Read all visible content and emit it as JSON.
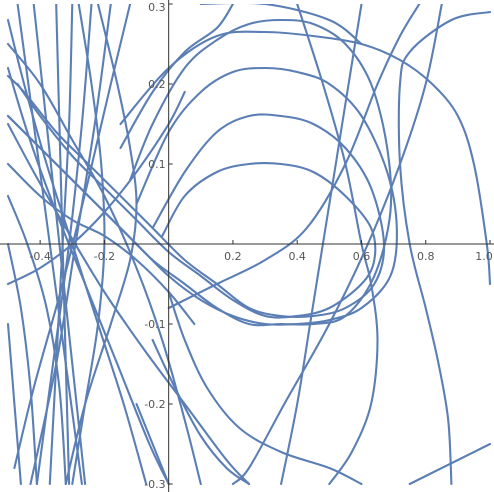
{
  "chart_data": {
    "type": "line",
    "title": "",
    "xlabel": "",
    "ylabel": "",
    "xlim": [
      -0.5,
      1.0
    ],
    "ylim": [
      -0.3,
      0.3
    ],
    "axes_origin": [
      0,
      0
    ],
    "grid": false,
    "legend": "none",
    "curve_color": "#5b7fb5",
    "x_ticks": [
      {
        "value": -0.4,
        "label": "-0.4"
      },
      {
        "value": -0.2,
        "label": "-0.2"
      },
      {
        "value": 0.2,
        "label": "0.2"
      },
      {
        "value": 0.4,
        "label": "0.4"
      },
      {
        "value": 0.6,
        "label": "0.6"
      },
      {
        "value": 0.8,
        "label": "0.8"
      },
      {
        "value": 1.0,
        "label": "1.0"
      }
    ],
    "y_ticks": [
      {
        "value": -0.3,
        "label": "-0.3"
      },
      {
        "value": -0.2,
        "label": "-0.2"
      },
      {
        "value": -0.1,
        "label": "-0.1"
      },
      {
        "value": 0.1,
        "label": "0.1"
      },
      {
        "value": 0.2,
        "label": "0.2"
      },
      {
        "value": 0.3,
        "label": "0.3"
      }
    ],
    "series": [
      {
        "points": [
          [
            -0.02,
            0.01
          ],
          [
            0.05,
            0.06
          ],
          [
            0.15,
            0.09
          ],
          [
            0.25,
            0.1
          ],
          [
            0.35,
            0.1
          ],
          [
            0.45,
            0.09
          ],
          [
            0.55,
            0.06
          ],
          [
            0.63,
            0.02
          ],
          [
            0.64,
            -0.02
          ],
          [
            0.6,
            -0.05
          ],
          [
            0.5,
            -0.08
          ],
          [
            0.4,
            -0.09
          ],
          [
            0.3,
            -0.09
          ],
          [
            0.2,
            -0.07
          ],
          [
            0.1,
            -0.04
          ],
          [
            0.0,
            -0.01
          ],
          [
            -0.1,
            0.03
          ],
          [
            -0.2,
            0.07
          ],
          [
            -0.3,
            0.11
          ],
          [
            -0.4,
            0.16
          ],
          [
            -0.47,
            0.2
          ]
        ]
      },
      {
        "points": [
          [
            -0.05,
            0.02
          ],
          [
            0.05,
            0.09
          ],
          [
            0.15,
            0.14
          ],
          [
            0.25,
            0.16
          ],
          [
            0.35,
            0.16
          ],
          [
            0.45,
            0.15
          ],
          [
            0.55,
            0.12
          ],
          [
            0.63,
            0.07
          ],
          [
            0.67,
            0.0
          ],
          [
            0.64,
            -0.05
          ],
          [
            0.55,
            -0.08
          ],
          [
            0.45,
            -0.09
          ],
          [
            0.35,
            -0.09
          ],
          [
            0.25,
            -0.08
          ],
          [
            0.15,
            -0.05
          ],
          [
            0.05,
            -0.02
          ],
          [
            -0.05,
            0.02
          ],
          [
            -0.15,
            0.06
          ],
          [
            -0.25,
            0.1
          ],
          [
            -0.35,
            0.14
          ],
          [
            -0.45,
            0.19
          ],
          [
            -0.5,
            0.21
          ]
        ]
      },
      {
        "points": [
          [
            -0.1,
            0.05
          ],
          [
            0.0,
            0.14
          ],
          [
            0.1,
            0.19
          ],
          [
            0.2,
            0.215
          ],
          [
            0.3,
            0.22
          ],
          [
            0.4,
            0.215
          ],
          [
            0.5,
            0.2
          ],
          [
            0.6,
            0.16
          ],
          [
            0.68,
            0.09
          ],
          [
            0.71,
            0.02
          ],
          [
            0.69,
            -0.04
          ],
          [
            0.6,
            -0.08
          ],
          [
            0.5,
            -0.095
          ],
          [
            0.4,
            -0.1
          ],
          [
            0.3,
            -0.1
          ],
          [
            0.2,
            -0.09
          ],
          [
            0.1,
            -0.07
          ],
          [
            0.0,
            -0.04
          ],
          [
            -0.1,
            0.0
          ],
          [
            -0.2,
            0.04
          ],
          [
            -0.3,
            0.08
          ],
          [
            -0.4,
            0.12
          ],
          [
            -0.5,
            0.16
          ]
        ]
      },
      {
        "points": [
          [
            -0.12,
            0.08
          ],
          [
            -0.05,
            0.15
          ],
          [
            0.05,
            0.22
          ],
          [
            0.15,
            0.255
          ],
          [
            0.25,
            0.275
          ],
          [
            0.35,
            0.28
          ],
          [
            0.45,
            0.275
          ],
          [
            0.55,
            0.25
          ],
          [
            0.63,
            0.2
          ],
          [
            0.68,
            0.12
          ],
          [
            0.69,
            0.04
          ],
          [
            0.64,
            -0.04
          ],
          [
            0.55,
            -0.09
          ],
          [
            0.45,
            -0.1
          ],
          [
            0.35,
            -0.1
          ],
          [
            0.25,
            -0.1
          ],
          [
            0.15,
            -0.08
          ],
          [
            0.05,
            -0.05
          ],
          [
            -0.05,
            -0.02
          ],
          [
            -0.15,
            0.02
          ],
          [
            -0.25,
            0.06
          ],
          [
            -0.35,
            0.1
          ],
          [
            -0.45,
            0.14
          ],
          [
            -0.5,
            0.16
          ]
        ]
      },
      {
        "points": [
          [
            -0.15,
            0.12
          ],
          [
            -0.05,
            0.19
          ],
          [
            0.05,
            0.24
          ],
          [
            0.15,
            0.27
          ],
          [
            0.2,
            0.3
          ]
        ]
      },
      {
        "points": [
          [
            0.1,
            0.3
          ],
          [
            0.3,
            0.3
          ],
          [
            0.5,
            0.28
          ],
          [
            0.6,
            0.25
          ]
        ]
      },
      {
        "points": [
          [
            0.85,
            0.3
          ],
          [
            0.8,
            0.2
          ],
          [
            0.72,
            0.1
          ],
          [
            0.62,
            0.0
          ],
          [
            0.5,
            -0.1
          ],
          [
            0.36,
            -0.2
          ],
          [
            0.25,
            -0.28
          ],
          [
            0.2,
            -0.3
          ]
        ]
      },
      {
        "points": [
          [
            -0.15,
            0.15
          ],
          [
            0.0,
            0.22
          ],
          [
            0.15,
            0.26
          ],
          [
            0.3,
            0.265
          ],
          [
            0.45,
            0.26
          ],
          [
            0.6,
            0.25
          ],
          [
            0.72,
            0.23
          ],
          [
            0.82,
            0.2
          ],
          [
            0.9,
            0.16
          ],
          [
            0.95,
            0.1
          ],
          [
            0.99,
            0.0
          ],
          [
            1.0,
            -0.05
          ]
        ]
      },
      {
        "points": [
          [
            0.4,
            0.3
          ],
          [
            0.48,
            0.2
          ],
          [
            0.55,
            0.1
          ],
          [
            0.6,
            0.0
          ],
          [
            0.63,
            -0.05
          ],
          [
            0.65,
            -0.12
          ],
          [
            0.63,
            -0.2
          ],
          [
            0.57,
            -0.26
          ],
          [
            0.5,
            -0.3
          ]
        ]
      },
      {
        "points": [
          [
            1.0,
            0.29
          ],
          [
            0.88,
            0.28
          ],
          [
            0.75,
            0.24
          ],
          [
            0.72,
            0.2
          ],
          [
            0.72,
            0.1
          ],
          [
            0.75,
            0.0
          ],
          [
            0.8,
            -0.08
          ],
          [
            0.84,
            -0.15
          ],
          [
            0.87,
            -0.22
          ],
          [
            0.88,
            -0.3
          ]
        ]
      },
      {
        "points": [
          [
            0.35,
            -0.3
          ],
          [
            0.4,
            -0.2
          ],
          [
            0.44,
            -0.1
          ],
          [
            0.48,
            0.0
          ],
          [
            0.52,
            0.1
          ],
          [
            0.56,
            0.2
          ],
          [
            0.6,
            0.3
          ]
        ]
      },
      {
        "points": [
          [
            0.78,
            0.3
          ],
          [
            0.72,
            0.26
          ],
          [
            0.65,
            0.2
          ],
          [
            0.55,
            0.1
          ],
          [
            0.43,
            0.02
          ],
          [
            0.3,
            -0.02
          ],
          [
            0.15,
            -0.05
          ],
          [
            0.0,
            -0.08
          ]
        ]
      },
      {
        "points": [
          [
            0.0,
            -0.06
          ],
          [
            0.05,
            -0.12
          ],
          [
            0.12,
            -0.18
          ],
          [
            0.22,
            -0.23
          ],
          [
            0.35,
            -0.26
          ],
          [
            0.5,
            -0.28
          ],
          [
            0.6,
            -0.3
          ]
        ]
      },
      {
        "points": [
          [
            -0.05,
            -0.12
          ],
          [
            0.02,
            -0.18
          ],
          [
            0.1,
            -0.24
          ],
          [
            0.18,
            -0.28
          ],
          [
            0.25,
            -0.3
          ]
        ]
      },
      {
        "points": [
          [
            -0.1,
            -0.2
          ],
          [
            -0.05,
            -0.25
          ],
          [
            0.0,
            -0.3
          ]
        ]
      },
      {
        "points": [
          [
            1.0,
            -0.25
          ],
          [
            0.9,
            -0.27
          ],
          [
            0.8,
            -0.29
          ],
          [
            0.75,
            -0.3
          ]
        ]
      },
      {
        "points": [
          [
            -0.47,
            0.3
          ],
          [
            -0.42,
            0.15
          ],
          [
            -0.37,
            0.0
          ],
          [
            -0.32,
            -0.15
          ],
          [
            -0.27,
            -0.3
          ]
        ]
      },
      {
        "points": [
          [
            -0.42,
            0.3
          ],
          [
            -0.38,
            0.15
          ],
          [
            -0.34,
            0.0
          ],
          [
            -0.3,
            -0.15
          ],
          [
            -0.26,
            -0.3
          ]
        ]
      },
      {
        "points": [
          [
            -0.35,
            0.3
          ],
          [
            -0.34,
            0.15
          ],
          [
            -0.33,
            0.0
          ],
          [
            -0.32,
            -0.15
          ],
          [
            -0.31,
            -0.3
          ]
        ]
      },
      {
        "points": [
          [
            -0.3,
            0.3
          ],
          [
            -0.31,
            0.15
          ],
          [
            -0.33,
            0.0
          ],
          [
            -0.35,
            -0.15
          ],
          [
            -0.37,
            -0.3
          ]
        ]
      },
      {
        "points": [
          [
            -0.24,
            0.3
          ],
          [
            -0.27,
            0.15
          ],
          [
            -0.31,
            0.0
          ],
          [
            -0.36,
            -0.15
          ],
          [
            -0.41,
            -0.3
          ]
        ]
      },
      {
        "points": [
          [
            -0.18,
            0.3
          ],
          [
            -0.23,
            0.15
          ],
          [
            -0.29,
            0.0
          ],
          [
            -0.35,
            -0.15
          ],
          [
            -0.43,
            -0.3
          ]
        ]
      },
      {
        "points": [
          [
            -0.12,
            0.3
          ],
          [
            -0.18,
            0.2
          ],
          [
            -0.25,
            0.08
          ],
          [
            -0.33,
            -0.05
          ],
          [
            -0.42,
            -0.18
          ],
          [
            -0.48,
            -0.28
          ]
        ]
      },
      {
        "points": [
          [
            -0.5,
            0.28
          ],
          [
            -0.45,
            0.2
          ],
          [
            -0.38,
            0.1
          ],
          [
            -0.3,
            0.0
          ],
          [
            -0.22,
            -0.1
          ],
          [
            -0.14,
            -0.2
          ],
          [
            -0.07,
            -0.3
          ]
        ]
      },
      {
        "points": [
          [
            -0.5,
            0.22
          ],
          [
            -0.44,
            0.14
          ],
          [
            -0.36,
            0.05
          ],
          [
            -0.26,
            -0.05
          ],
          [
            -0.16,
            -0.15
          ],
          [
            -0.06,
            -0.25
          ],
          [
            0.0,
            -0.3
          ]
        ]
      },
      {
        "points": [
          [
            -0.5,
            0.15
          ],
          [
            -0.42,
            0.09
          ],
          [
            -0.32,
            0.02
          ],
          [
            -0.2,
            -0.06
          ],
          [
            -0.08,
            -0.13
          ],
          [
            0.05,
            -0.2
          ],
          [
            0.18,
            -0.27
          ],
          [
            0.25,
            -0.3
          ]
        ]
      },
      {
        "points": [
          [
            -0.5,
            0.06
          ],
          [
            -0.44,
            0.0
          ],
          [
            -0.38,
            -0.08
          ],
          [
            -0.34,
            -0.18
          ],
          [
            -0.32,
            -0.3
          ]
        ]
      },
      {
        "points": [
          [
            -0.5,
            0.0
          ],
          [
            -0.46,
            -0.08
          ],
          [
            -0.43,
            -0.18
          ],
          [
            -0.41,
            -0.3
          ]
        ]
      },
      {
        "points": [
          [
            -0.5,
            -0.1
          ],
          [
            -0.48,
            -0.2
          ],
          [
            -0.46,
            -0.3
          ]
        ]
      },
      {
        "points": [
          [
            -0.22,
            0.3
          ],
          [
            -0.16,
            0.2
          ],
          [
            -0.12,
            0.12
          ],
          [
            -0.1,
            0.05
          ],
          [
            -0.12,
            -0.02
          ],
          [
            -0.18,
            -0.1
          ],
          [
            -0.26,
            -0.2
          ],
          [
            -0.32,
            -0.3
          ]
        ]
      },
      {
        "points": [
          [
            -0.28,
            0.3
          ],
          [
            -0.24,
            0.2
          ],
          [
            -0.21,
            0.1
          ],
          [
            -0.2,
            0.0
          ],
          [
            -0.22,
            -0.1
          ],
          [
            -0.26,
            -0.2
          ],
          [
            -0.3,
            -0.3
          ]
        ]
      },
      {
        "points": [
          [
            -0.5,
            0.1
          ],
          [
            -0.4,
            0.06
          ],
          [
            -0.3,
            0.03
          ],
          [
            -0.2,
            0.01
          ],
          [
            -0.1,
            -0.02
          ],
          [
            0.0,
            -0.06
          ],
          [
            0.08,
            -0.1
          ]
        ]
      },
      {
        "points": [
          [
            -0.5,
            -0.05
          ],
          [
            -0.4,
            -0.03
          ],
          [
            -0.3,
            0.0
          ],
          [
            -0.2,
            0.04
          ],
          [
            -0.1,
            0.09
          ],
          [
            0.0,
            0.15
          ],
          [
            0.05,
            0.19
          ]
        ]
      },
      {
        "points": [
          [
            -0.5,
            0.25
          ],
          [
            -0.4,
            0.2
          ],
          [
            -0.3,
            0.13
          ],
          [
            -0.2,
            0.06
          ],
          [
            -0.1,
            -0.03
          ],
          [
            -0.02,
            -0.12
          ],
          [
            0.05,
            -0.22
          ],
          [
            0.1,
            -0.3
          ]
        ]
      }
    ]
  }
}
